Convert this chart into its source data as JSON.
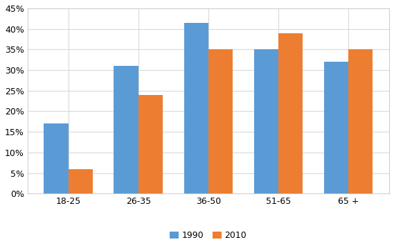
{
  "categories": [
    "18-25",
    "26-35",
    "36-50",
    "51-65",
    "65 +"
  ],
  "values_1990": [
    0.17,
    0.31,
    0.415,
    0.35,
    0.32
  ],
  "values_2010": [
    0.06,
    0.24,
    0.35,
    0.39,
    0.35
  ],
  "bar_color_1990": "#5B9BD5",
  "bar_color_2010": "#ED7D31",
  "legend_labels": [
    "1990",
    "2010"
  ],
  "ylim": [
    0,
    0.45
  ],
  "yticks": [
    0.0,
    0.05,
    0.1,
    0.15,
    0.2,
    0.25,
    0.3,
    0.35,
    0.4,
    0.45
  ],
  "figure_background": "#FFFFFF",
  "plot_background": "#FFFFFF",
  "grid_color": "#D9D9D9",
  "bar_width": 0.35,
  "legend_fontsize": 9,
  "tick_fontsize": 9,
  "spine_color": "#D0D0D0"
}
